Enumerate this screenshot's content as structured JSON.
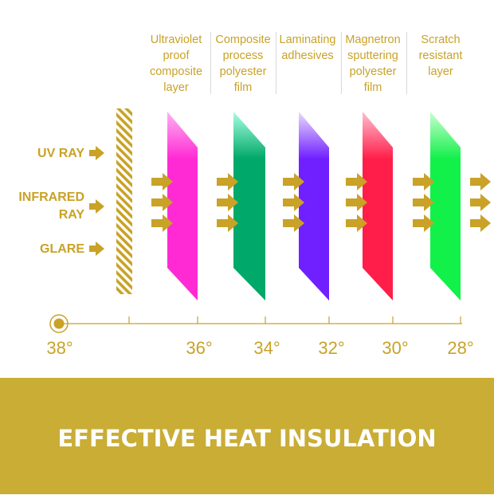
{
  "layers": [
    {
      "lines": [
        "Ultraviolet",
        "proof",
        "composite",
        "layer"
      ],
      "color_top": "#ffb3f2",
      "color": "#ff2ad4"
    },
    {
      "lines": [
        "Composite",
        "process",
        "polyester",
        "film"
      ],
      "color_top": "#a8ffe0",
      "color": "#00a869"
    },
    {
      "lines": [
        "Laminating",
        "adhesives"
      ],
      "color_top": "#eadcff",
      "color": "#7020ff"
    },
    {
      "lines": [
        "Magnetron",
        "sputtering",
        "polyester",
        "film"
      ],
      "color_top": "#ffc0d0",
      "color": "#ff1e4a"
    },
    {
      "lines": [
        "Scratch",
        "resistant",
        "layer"
      ],
      "color_top": "#c8ffd0",
      "color": "#12f04a"
    }
  ],
  "rays": [
    {
      "lines": [
        "UV RAY"
      ]
    },
    {
      "lines": [
        "INFRARED",
        "RAY"
      ]
    },
    {
      "lines": [
        "GLARE"
      ]
    }
  ],
  "temperatures": [
    "38°",
    "36°",
    "34°",
    "32°",
    "30°",
    "28°"
  ],
  "banner": "EFFECTIVE HEAT INSULATION",
  "colors": {
    "gold": "#c9a227",
    "banner": "#c9ad35",
    "divider": "#d9d9d9"
  }
}
